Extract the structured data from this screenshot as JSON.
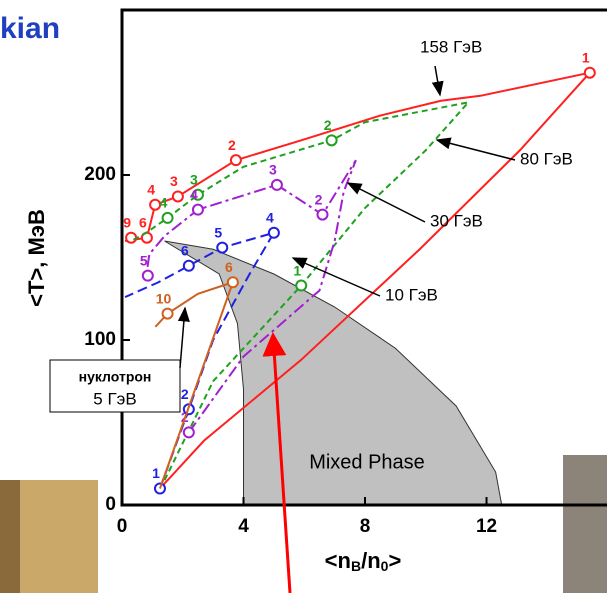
{
  "chart_data": {
    "type": "line",
    "title": "kian",
    "x_label_parts": [
      "<n",
      "B",
      "/n",
      "0",
      ">"
    ],
    "y_label": "<T>, МэВ",
    "xlim": [
      0,
      15.9
    ],
    "ylim": [
      0,
      300
    ],
    "xticks": [
      0,
      4,
      8,
      12
    ],
    "yticks": [
      0,
      100,
      200
    ],
    "region": {
      "name": "Mixed Phase",
      "color": "#c0c0c0",
      "x": [
        1.4,
        3,
        5,
        7,
        9,
        11,
        12.3,
        12.5,
        4.0,
        4.0,
        3.8,
        3.2
      ],
      "values": [
        160,
        155,
        140,
        120,
        95,
        60,
        20,
        0,
        0,
        70,
        110,
        140
      ]
    },
    "series": [
      {
        "name": "158 ГэВ",
        "color": "#ff2020",
        "dash": "none",
        "x": [
          1.25,
          2.7,
          5.9,
          9.8,
          13.1,
          15.4,
          11.8,
          10.5,
          8.5,
          5.9,
          3.75,
          1.84,
          1.09,
          0.82,
          0.1
        ],
        "values": [
          10,
          39,
          88,
          155,
          215,
          262,
          248,
          245,
          236,
          221,
          209,
          187,
          182,
          162,
          160
        ],
        "points": {
          "x": [
            15.4,
            3.75,
            1.84,
            1.09,
            0.82,
            0.3
          ],
          "values": [
            262,
            209,
            187,
            182,
            162,
            162
          ],
          "labels": [
            "1",
            "2",
            "3",
            "4",
            "6",
            "9"
          ]
        }
      },
      {
        "name": "80 ГэВ",
        "color": "#20a020",
        "dash": "6 4",
        "x": [
          1.4,
          3,
          5.9,
          8,
          10,
          11.4,
          8,
          6.9,
          4,
          2.5,
          1.5,
          0.8,
          0.3
        ],
        "values": [
          15,
          75,
          133,
          180,
          215,
          244,
          232,
          221,
          205,
          188,
          174,
          165,
          160
        ],
        "points": {
          "x": [
            5.9,
            6.9,
            2.5,
            1.5
          ],
          "values": [
            133,
            221,
            188,
            174
          ],
          "labels": [
            "1",
            "2",
            "3",
            "4"
          ]
        }
      },
      {
        "name": "30 ГэВ",
        "color": "#a020d0",
        "dash": "12 4 3 4",
        "x": [
          2.2,
          4,
          6.5,
          7,
          7.3,
          7.7,
          6.6,
          5.1,
          2.5,
          1.4,
          0.9,
          0.8
        ],
        "values": [
          44,
          90,
          130,
          160,
          190,
          209,
          176,
          194,
          179,
          163,
          152,
          139
        ],
        "points": {
          "x": [
            2.2,
            6.6,
            5.1,
            2.5,
            0.85
          ],
          "values": [
            44,
            176,
            194,
            179,
            139
          ],
          "labels": [
            "2",
            "2",
            "3",
            "4",
            "5"
          ]
        }
      },
      {
        "name": "10 ГэВ",
        "color": "#2020e0",
        "dash": "10 5",
        "x": [
          1.25,
          2.2,
          3,
          4.2,
          5,
          3.3,
          2.2,
          1.2,
          0.1
        ],
        "values": [
          10,
          58,
          100,
          140,
          165,
          156,
          145,
          135,
          126
        ],
        "points": {
          "x": [
            1.25,
            2.2,
            5.0,
            3.3,
            2.2
          ],
          "values": [
            10,
            58,
            165,
            156,
            145
          ],
          "labels": [
            "1",
            "2",
            "4",
            "5",
            "6"
          ]
        }
      },
      {
        "name": "нуклотрон",
        "sub": "5 ГэВ",
        "color": "#d06020",
        "dash": "none",
        "x": [
          1.25,
          2.5,
          3.65,
          2.5,
          1.5,
          1.1
        ],
        "values": [
          10,
          75,
          135,
          128,
          116,
          108
        ],
        "points": {
          "x": [
            3.65,
            1.5
          ],
          "values": [
            135,
            116
          ],
          "labels": [
            "6",
            "10"
          ]
        }
      }
    ]
  }
}
